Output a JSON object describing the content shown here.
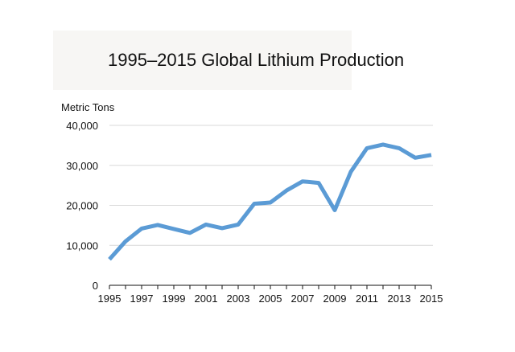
{
  "chart_data": {
    "type": "line",
    "title": "1995–2015 Global Lithium Production",
    "ylabel": "Metric Tons",
    "xlabel": "",
    "x": [
      1995,
      1996,
      1997,
      1998,
      1999,
      2000,
      2001,
      2002,
      2003,
      2004,
      2005,
      2006,
      2007,
      2008,
      2009,
      2010,
      2011,
      2012,
      2013,
      2014,
      2015
    ],
    "series": [
      {
        "values": [
          6500,
          11000,
          14200,
          15100,
          14100,
          13100,
          15200,
          14300,
          15200,
          20400,
          20700,
          23700,
          26000,
          25600,
          18800,
          28400,
          34300,
          35200,
          34300,
          31900,
          32600
        ]
      }
    ],
    "ylim": [
      0,
      40000
    ],
    "yticks": [
      0,
      10000,
      20000,
      30000,
      40000
    ],
    "ytick_labels": [
      "0",
      "10,000",
      "20,000",
      "30,000",
      "40,000"
    ],
    "xticks": [
      1995,
      1997,
      1999,
      2001,
      2003,
      2005,
      2007,
      2009,
      2011,
      2013,
      2015
    ],
    "xtick_labels": [
      "1995",
      "1997",
      "1999",
      "2001",
      "2003",
      "2005",
      "2007",
      "2009",
      "2011",
      "2013",
      "2015"
    ],
    "grid": true,
    "line_color": "#5b9bd5",
    "grid_color": "#d9d9d9"
  }
}
